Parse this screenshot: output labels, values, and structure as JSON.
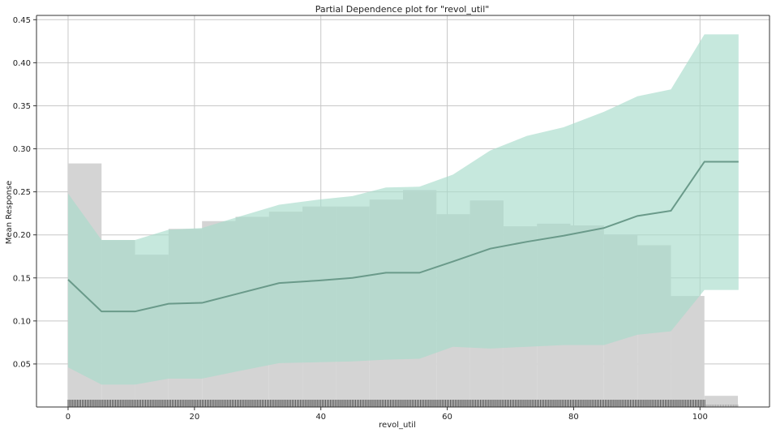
{
  "chart_data": {
    "type": "line",
    "title": "Partial Dependence plot for \"revol_util\"",
    "xlabel": "revol_util",
    "ylabel": "Mean Response",
    "xlim": [
      -5,
      111
    ],
    "ylim": [
      0,
      0.455
    ],
    "xticks": [
      0,
      20,
      40,
      60,
      80,
      100
    ],
    "yticks": [
      0.05,
      0.1,
      0.15,
      0.2,
      0.25,
      0.3,
      0.35,
      0.4,
      0.45
    ],
    "xtick_labels": [
      "0",
      "20",
      "40",
      "60",
      "80",
      "100"
    ],
    "ytick_labels": [
      "0.05",
      "0.10",
      "0.15",
      "0.20",
      "0.25",
      "0.30",
      "0.35",
      "0.40",
      "0.45"
    ],
    "grid": true,
    "colors": {
      "histogram": "#d4d4d4",
      "band": "#a8dccb",
      "line": "#6a9a8a",
      "rug": "#222222",
      "grid": "#c8c8c8"
    },
    "series": [
      {
        "x": [
          0,
          5.3,
          10.6,
          15.9,
          21.2,
          26.5,
          33.4,
          39.7,
          45.0,
          50.3,
          55.6,
          60.9,
          66.8,
          72.6,
          78.4,
          84.8,
          90.1,
          95.4,
          100.7,
          106.1
        ],
        "y": [
          0.148,
          0.111,
          0.111,
          0.12,
          0.121,
          0.131,
          0.144,
          0.147,
          0.15,
          0.156,
          0.156,
          0.169,
          0.184,
          0.192,
          0.199,
          0.208,
          0.222,
          0.228,
          0.285,
          0.285
        ],
        "upper": [
          0.248,
          0.194,
          0.194,
          0.206,
          0.208,
          0.22,
          0.235,
          0.241,
          0.245,
          0.255,
          0.256,
          0.27,
          0.298,
          0.315,
          0.325,
          0.343,
          0.361,
          0.369,
          0.433,
          0.433
        ],
        "lower": [
          0.046,
          0.026,
          0.026,
          0.033,
          0.033,
          0.041,
          0.051,
          0.052,
          0.053,
          0.055,
          0.056,
          0.07,
          0.068,
          0.07,
          0.072,
          0.072,
          0.084,
          0.088,
          0.136,
          0.136
        ]
      }
    ],
    "histogram": {
      "bin_edges": [
        0,
        5.3,
        10.6,
        15.9,
        21.2,
        26.5,
        31.8,
        37.1,
        42.4,
        47.7,
        53.0,
        58.3,
        63.6,
        68.9,
        74.2,
        79.5,
        84.8,
        90.1,
        95.4,
        100.7,
        106.0
      ],
      "values": [
        0.283,
        0.194,
        0.177,
        0.207,
        0.216,
        0.221,
        0.227,
        0.233,
        0.233,
        0.241,
        0.252,
        0.224,
        0.24,
        0.21,
        0.213,
        0.211,
        0.2,
        0.188,
        0.129,
        0.013
      ]
    },
    "rug_range": [
      0,
      106
    ]
  }
}
